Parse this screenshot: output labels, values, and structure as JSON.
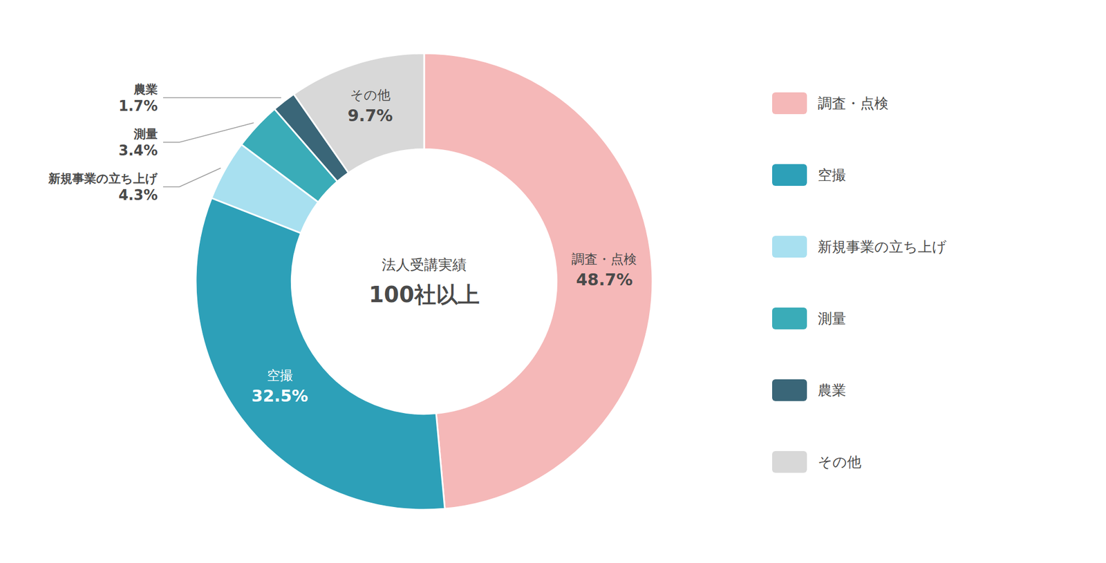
{
  "chart_data": {
    "type": "donut",
    "categories": [
      "調査・点検",
      "空撮",
      "新規事業の立ち上げ",
      "測量",
      "農業",
      "その他"
    ],
    "values": [
      48.7,
      32.5,
      4.3,
      3.4,
      1.7,
      9.7
    ],
    "value_labels": [
      "48.7%",
      "32.5%",
      "4.3%",
      "3.4%",
      "1.7%",
      "9.7%"
    ],
    "colors": [
      "#F5B8B8",
      "#2DA0B8",
      "#A8E0F0",
      "#3AACB8",
      "#3A6678",
      "#D8D8D8"
    ],
    "annotations": [
      "法人受講実績",
      "100社以上"
    ],
    "data_labels": true,
    "legend": "right"
  }
}
